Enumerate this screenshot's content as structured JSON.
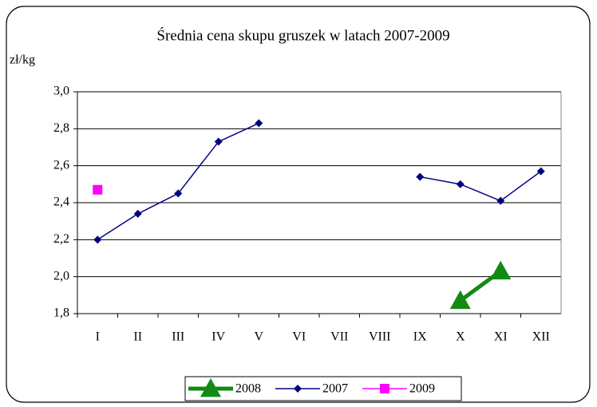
{
  "chart_data": {
    "type": "line",
    "title": "Średnia cena skupu gruszek w latach  2007-2009",
    "y_label": "zł/kg",
    "categories": [
      "I",
      "II",
      "III",
      "IV",
      "V",
      "VI",
      "VII",
      "VIII",
      "IX",
      "X",
      "XI",
      "XII"
    ],
    "series": [
      {
        "name": "2008",
        "color": "#138a13",
        "marker": "triangle",
        "values": [
          null,
          null,
          null,
          null,
          null,
          null,
          null,
          null,
          null,
          1.87,
          2.03,
          null
        ]
      },
      {
        "name": "2007",
        "color": "#000080",
        "marker": "diamond",
        "values": [
          2.2,
          2.34,
          2.45,
          2.73,
          2.83,
          null,
          null,
          null,
          2.54,
          2.5,
          2.41,
          2.57
        ]
      },
      {
        "name": "2009",
        "color": "#ff00ff",
        "marker": "square",
        "values": [
          2.47,
          null,
          null,
          null,
          null,
          null,
          null,
          null,
          null,
          null,
          null,
          null
        ]
      }
    ],
    "ylim": [
      1.8,
      3.0
    ],
    "yticks": [
      {
        "value": 1.8,
        "label": "1,8"
      },
      {
        "value": 2.0,
        "label": "2,0"
      },
      {
        "value": 2.2,
        "label": "2,2"
      },
      {
        "value": 2.4,
        "label": "2,4"
      },
      {
        "value": 2.6,
        "label": "2,6"
      },
      {
        "value": 2.8,
        "label": "2,8"
      },
      {
        "value": 3.0,
        "label": "3,0"
      }
    ],
    "grid": true,
    "legend": "bottom"
  }
}
